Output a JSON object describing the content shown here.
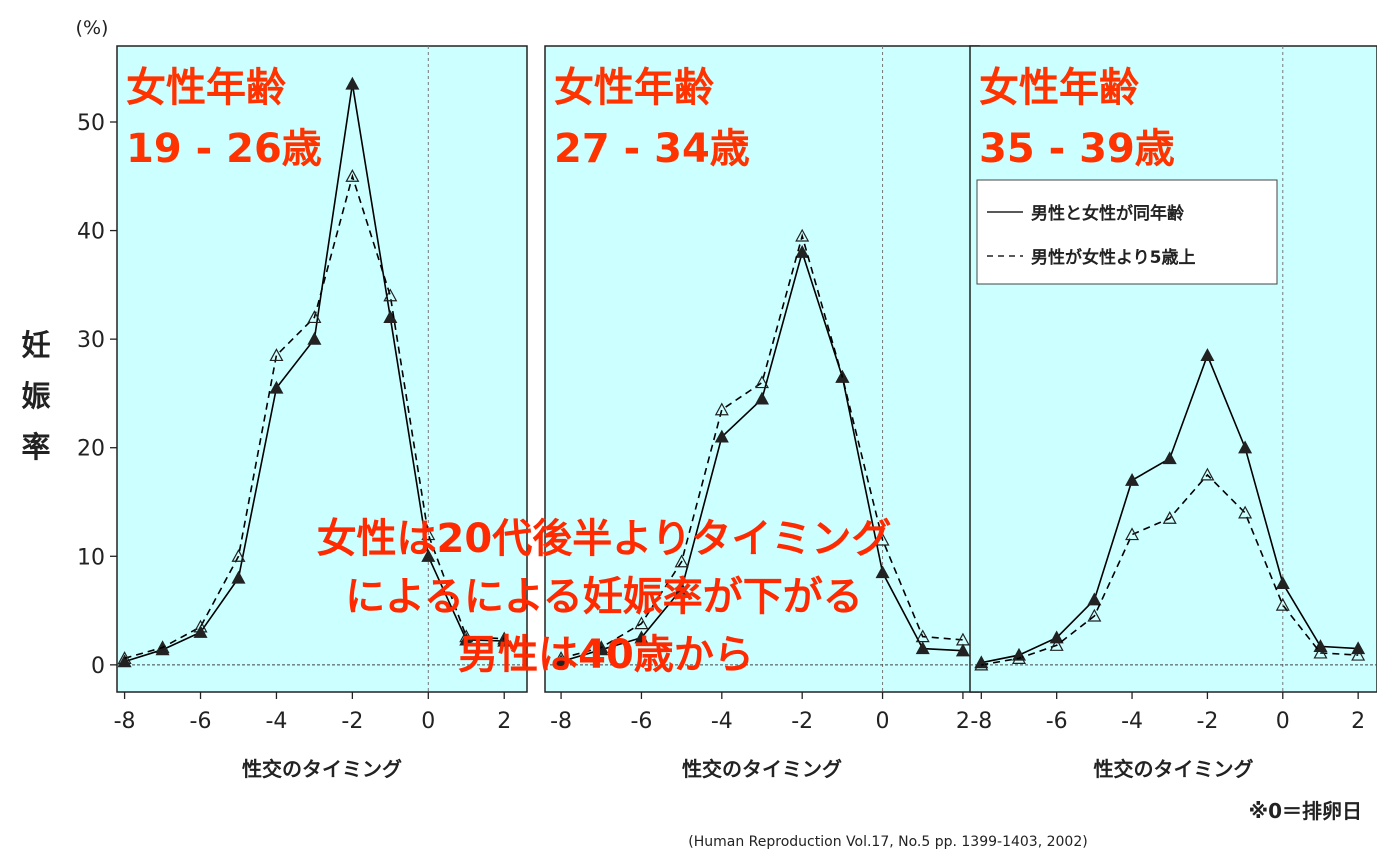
{
  "y_unit": "(%)",
  "y_label_chars": [
    "妊",
    "娠",
    "率"
  ],
  "overlay_lines": [
    "女性は20代後半よりタイミング",
    "によるによる妊娠率が下がる",
    "男性は40歳から"
  ],
  "footnote": "※0＝排卵日",
  "citation": "(Human  Reproduction Vol.17, No.5 pp. 1399-1403, 2002)",
  "colors": {
    "panel_bg": "#ccffff",
    "title_red": "#ff3300",
    "line": "#000000"
  },
  "chart_data": [
    {
      "type": "line",
      "title_lines": [
        "女性年齢",
        "19 - 26歳"
      ],
      "xlabel": "性交のタイミング",
      "ylabel": "妊娠率",
      "xlim": [
        -8.2,
        2.6
      ],
      "ylim": [
        -2.5,
        57
      ],
      "xticks": [
        -8,
        -6,
        -4,
        -2,
        0,
        2
      ],
      "yticks": [
        0,
        10,
        20,
        30,
        40,
        50
      ],
      "x": [
        -8,
        -7,
        -6,
        -5,
        -4,
        -3,
        -2,
        -1,
        0,
        1,
        2
      ],
      "series": [
        {
          "name": "男性と女性が同年齢",
          "style": "solid",
          "values": [
            0.3,
            1.4,
            3.0,
            8.0,
            25.5,
            30.0,
            53.5,
            32.0,
            10.0,
            2.3,
            2.2
          ]
        },
        {
          "name": "男性が女性より5歳上",
          "style": "dashed",
          "values": [
            0.6,
            1.6,
            3.5,
            10.0,
            28.5,
            32.0,
            45.0,
            34.0,
            12.0,
            2.6,
            2.4
          ]
        }
      ],
      "legend": null
    },
    {
      "type": "line",
      "title_lines": [
        "女性年齢",
        "27 - 34歳"
      ],
      "xlabel": "性交のタイミング",
      "ylabel": "妊娠率",
      "xlim": [
        -8.4,
        2.4
      ],
      "ylim": [
        -2.5,
        57
      ],
      "xticks": [
        -8,
        -6,
        -4,
        -2,
        0,
        2
      ],
      "yticks": [],
      "x": [
        -8,
        -7,
        -6,
        -5,
        -4,
        -3,
        -2,
        -1,
        0,
        1,
        2
      ],
      "series": [
        {
          "name": "男性と女性が同年齢",
          "style": "solid",
          "values": [
            0.3,
            1.4,
            2.5,
            7.0,
            21.0,
            24.5,
            38.0,
            26.5,
            8.5,
            1.5,
            1.3
          ]
        },
        {
          "name": "男性が女性より5歳上",
          "style": "dashed",
          "values": [
            0.6,
            1.6,
            3.8,
            9.5,
            23.5,
            26.0,
            39.5,
            26.5,
            11.5,
            2.6,
            2.3
          ]
        }
      ],
      "legend": null
    },
    {
      "type": "line",
      "title_lines": [
        "女性年齢",
        "35 - 39歳"
      ],
      "xlabel": "性交のタイミング",
      "ylabel": "妊娠率",
      "xlim": [
        -8.3,
        2.5
      ],
      "ylim": [
        -2.5,
        57
      ],
      "xticks": [
        -8,
        -6,
        -4,
        -2,
        0,
        2
      ],
      "yticks": [],
      "x": [
        -8,
        -7,
        -6,
        -5,
        -4,
        -3,
        -2,
        -1,
        0,
        1,
        2
      ],
      "series": [
        {
          "name": "男性と女性が同年齢",
          "style": "solid",
          "values": [
            0.2,
            0.9,
            2.5,
            6.0,
            17.0,
            19.0,
            28.5,
            20.0,
            7.5,
            1.7,
            1.5
          ]
        },
        {
          "name": "男性が女性より5歳上",
          "style": "dashed",
          "values": [
            0.0,
            0.6,
            1.8,
            4.5,
            12.0,
            13.5,
            17.5,
            14.0,
            5.5,
            1.1,
            0.9
          ]
        }
      ],
      "legend": "top-right"
    }
  ]
}
